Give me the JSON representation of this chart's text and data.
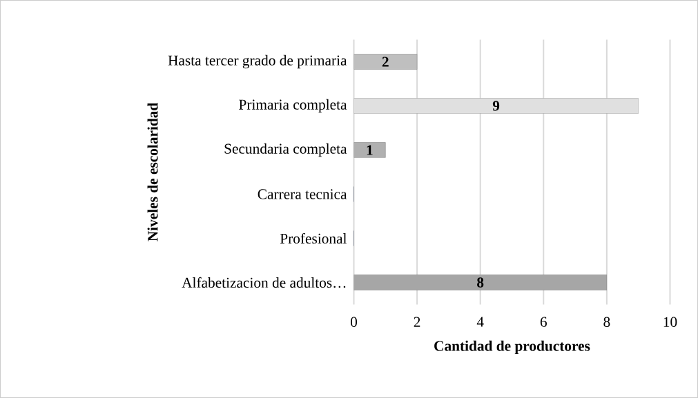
{
  "chart_data": {
    "type": "bar",
    "orientation": "horizontal",
    "xlabel": "Cantidad de productores",
    "ylabel": "Niveles de escolaridad",
    "categories": [
      "Hasta tercer grado de primaria",
      "Primaria completa",
      "Secundaria completa",
      "Carrera tecnica",
      "Profesional",
      "Alfabetizacion de adultos…"
    ],
    "values": [
      2,
      9,
      1,
      0,
      0,
      8
    ],
    "colors": [
      "#bfbfbf",
      "#e0e0e0",
      "#b0b0b0",
      "#5f7391",
      "#5f7391",
      "#a6a6a6"
    ],
    "value_labels": [
      "2",
      "9",
      "1",
      null,
      null,
      "8"
    ],
    "xlim": [
      0,
      10
    ],
    "xticks": [
      0,
      2,
      4,
      6,
      8,
      10
    ],
    "grid": "x"
  }
}
